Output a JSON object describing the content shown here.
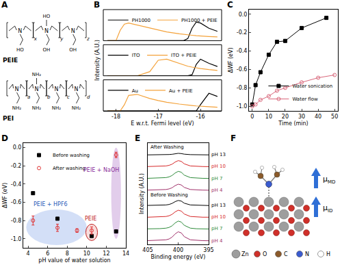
{
  "chart_data": [
    {
      "label": "B",
      "type": "line",
      "x_label": "E w.r.t. Fermi level (eV)",
      "y_label": "Intensity (A.U.)",
      "xlim": [
        -18.3,
        -15.5
      ],
      "xticks": [
        -18,
        -17,
        -16
      ],
      "ylim": [
        0,
        1.5
      ],
      "yticks": [],
      "tick_labels": "x",
      "legend": "top left",
      "x": [
        -18.2,
        -18.0,
        -17.9,
        -17.8,
        -17.7,
        -17.5,
        -17.2,
        -17.0,
        -16.8,
        -16.5,
        -16.4,
        -16.3,
        -16.2,
        -16.1,
        -16.0,
        -15.8,
        -15.6
      ],
      "subplots": [
        {
          "series": [
            {
              "name": "PH1000",
              "color": "#000000",
              "values": [
                0,
                0,
                0,
                0,
                0,
                0,
                0,
                0,
                0,
                0,
                0,
                0.1,
                0.6,
                0.9,
                0.85,
                0.6,
                0.45
              ]
            },
            {
              "name": "PH1000 + PEIE",
              "color": "#f4a23a",
              "values": [
                0,
                0,
                0.5,
                0.8,
                0.85,
                0.75,
                0.6,
                0.5,
                0.42,
                0.33,
                0.3,
                0.28,
                0.26,
                0.24,
                0.22,
                0.2,
                0.18
              ]
            }
          ]
        },
        {
          "series": [
            {
              "name": "ITO",
              "color": "#000000",
              "values": [
                0,
                0,
                0,
                0,
                0,
                0,
                0,
                0,
                0,
                0,
                0,
                0,
                0.05,
                0.55,
                0.8,
                0.6,
                0.45
              ]
            },
            {
              "name": "ITO + PEIE",
              "color": "#f4a23a",
              "values": [
                0,
                0,
                0,
                0,
                0,
                0,
                0.2,
                0.75,
                0.8,
                0.6,
                0.52,
                0.46,
                0.42,
                0.38,
                0.35,
                0.3,
                0.26
              ]
            }
          ]
        },
        {
          "series": [
            {
              "name": "Au",
              "color": "#000000",
              "values": [
                0,
                0,
                0,
                0,
                0,
                0,
                0,
                0,
                0,
                0,
                0,
                0,
                0,
                0,
                0.3,
                0.85,
                0.7
              ]
            },
            {
              "name": "Au + PEIE",
              "color": "#f4a23a",
              "values": [
                0,
                0,
                0,
                0.3,
                0.75,
                0.8,
                0.6,
                0.5,
                0.42,
                0.33,
                0.3,
                0.28,
                0.26,
                0.24,
                0.22,
                0.2,
                0.18
              ]
            }
          ]
        }
      ]
    },
    {
      "label": "C",
      "type": "line",
      "x_label": "Time (min)",
      "y_label": "ΔWF (eV)",
      "xlim": [
        -2,
        52
      ],
      "xticks": [
        0,
        10,
        20,
        30,
        40,
        50
      ],
      "ylim": [
        -1.05,
        0.05
      ],
      "yticks": [
        {
          "value": -1,
          "label": "-1.0"
        },
        -0.8,
        -0.6,
        -0.4,
        -0.2,
        {
          "value": 0,
          "label": "0.0"
        }
      ],
      "legend": "bottom right",
      "series": [
        {
          "name": "Water sonication",
          "color": "#000000",
          "marker": "square",
          "line_style": "solid",
          "x": [
            0,
            2,
            5,
            10,
            15,
            20,
            30,
            45
          ],
          "values": [
            -0.98,
            -0.77,
            -0.63,
            -0.44,
            -0.3,
            -0.29,
            -0.15,
            -0.04
          ]
        },
        {
          "name": "Water flow",
          "color": "#d9667a",
          "marker": "circle-open",
          "line_style": "solid",
          "x": [
            0,
            2,
            5,
            10,
            15,
            20,
            30,
            40,
            50
          ],
          "values": [
            -1.0,
            -0.98,
            -0.93,
            -0.89,
            -0.83,
            -0.8,
            -0.74,
            -0.69,
            -0.66
          ]
        }
      ]
    },
    {
      "label": "D",
      "type": "scatter",
      "x_label": "pH value of water solution",
      "y_label": "ΔWF (eV)",
      "xlim": [
        3.5,
        14
      ],
      "xticks": [
        4,
        6,
        8,
        10,
        12,
        14
      ],
      "ylim": [
        -1.1,
        0.05
      ],
      "yticks": [
        {
          "value": -1,
          "label": "-1.0"
        },
        -0.8,
        -0.6,
        -0.4,
        -0.2,
        {
          "value": 0,
          "label": "0.0"
        }
      ],
      "legend": "top left",
      "series": [
        {
          "name": "Before washing",
          "color": "#000000",
          "marker": "square",
          "x": [
            4.5,
            7,
            10.5,
            13
          ],
          "values": [
            -0.5,
            -0.78,
            -0.97,
            -0.92
          ]
        },
        {
          "name": "After washing",
          "color": "#e03030",
          "marker": "circle-open",
          "x": [
            4.5,
            7,
            9,
            10.5,
            13
          ],
          "values": [
            -0.8,
            -0.88,
            -0.91,
            -0.91,
            -0.08
          ],
          "error": [
            0.05,
            0.04,
            0.02,
            0.04,
            0.03
          ]
        }
      ],
      "annotations": [
        {
          "text": "PEIE + HPF6",
          "color": "#2a5ab8"
        },
        {
          "text": "PEIE",
          "color": "#c02020"
        },
        {
          "text": "PEIE + NaOH",
          "color": "#8a2d9a"
        }
      ]
    },
    {
      "label": "E",
      "type": "line",
      "x_label": "Binding energy (eV)",
      "y_label": "Intensity (A.U.)",
      "xlim": [
        405,
        395
      ],
      "xticks": [
        405,
        400,
        395
      ],
      "ylim": [
        0,
        8.6
      ],
      "yticks": [],
      "tick_labels": "x",
      "x": [
        405,
        404,
        403,
        402,
        401.5,
        401,
        400.5,
        400,
        399.5,
        399,
        398,
        397,
        396,
        395
      ],
      "series": [
        {
          "name": "pH 4",
          "color": "#a0306a",
          "values": [
            0.32,
            0.33,
            0.35,
            0.39,
            0.46,
            0.62,
            0.89,
            1.07,
            0.98,
            0.66,
            0.39,
            0.34,
            0.32,
            0.31
          ]
        },
        {
          "name": "pH 7",
          "color": "#2e8b3a",
          "values": [
            1.32,
            1.32,
            1.34,
            1.38,
            1.44,
            1.58,
            1.82,
            1.98,
            1.9,
            1.62,
            1.38,
            1.33,
            1.32,
            1.31
          ]
        },
        {
          "name": "pH 10",
          "color": "#d62728",
          "values": [
            2.31,
            2.32,
            2.34,
            2.37,
            2.43,
            2.55,
            2.76,
            2.9,
            2.83,
            2.58,
            2.37,
            2.33,
            2.31,
            2.31
          ]
        },
        {
          "name": "pH 13",
          "color": "#000000",
          "values": [
            3.31,
            3.32,
            3.33,
            3.35,
            3.39,
            3.48,
            3.63,
            3.73,
            3.68,
            3.5,
            3.35,
            3.32,
            3.31,
            3.3
          ]
        },
        {
          "name": "pH 4",
          "color": "#a0306a",
          "values": [
            4.61,
            4.62,
            4.63,
            4.66,
            4.71,
            4.81,
            4.99,
            5.11,
            5.05,
            4.84,
            4.66,
            4.62,
            4.61,
            4.6
          ]
        },
        {
          "name": "pH 7",
          "color": "#2e8b3a",
          "values": [
            5.61,
            5.62,
            5.64,
            5.67,
            5.73,
            5.85,
            6.06,
            6.2,
            6.13,
            5.88,
            5.67,
            5.63,
            5.61,
            5.6
          ]
        },
        {
          "name": "pH 10",
          "color": "#d62728",
          "values": [
            6.61,
            6.62,
            6.63,
            6.66,
            6.71,
            6.81,
            6.99,
            7.11,
            7.05,
            6.84,
            6.66,
            6.62,
            6.61,
            6.6
          ]
        },
        {
          "name": "pH 13",
          "color": "#000000",
          "values": [
            7.6,
            7.6,
            7.61,
            7.62,
            7.63,
            7.65,
            7.7,
            7.73,
            7.71,
            7.66,
            7.62,
            7.61,
            7.6,
            7.6
          ]
        }
      ],
      "annotations": [
        "After Washing",
        "Before Washing"
      ]
    }
  ],
  "diagrams": {
    "A": {
      "label": "A",
      "molecules": [
        {
          "name": "PEIE",
          "atom": "N",
          "units": [
            {
              "subscript": "x",
              "groups": [
                "HO"
              ]
            },
            {
              "subscript": "y",
              "groups": [
                "OH",
                "HO"
              ]
            },
            {
              "subscript": "z",
              "groups": [
                "OH"
              ]
            }
          ]
        },
        {
          "name": "PEI",
          "atom": "N",
          "units": [
            {
              "subscript": "a",
              "groups": [
                "NH₂"
              ]
            },
            {
              "subscript": "b",
              "groups": [
                "NH₂",
                "NH₂"
              ]
            },
            {
              "subscript": "c",
              "groups": [
                "NH₂"
              ]
            },
            {
              "subscript": "d",
              "groups": [
                "NH₂"
              ]
            }
          ]
        }
      ]
    },
    "F": {
      "label": "F",
      "elements": [
        {
          "name": "Zn",
          "color": "#9e9e9e"
        },
        {
          "name": "O",
          "color": "#d0302a"
        },
        {
          "name": "C",
          "color": "#8b5a2b"
        },
        {
          "name": "N",
          "color": "#3a5bd0"
        },
        {
          "name": "H",
          "color": "#ffffff"
        }
      ],
      "arrows": [
        {
          "symbol": "μ",
          "sub": "MD"
        },
        {
          "symbol": "μ",
          "sub": "ID"
        }
      ]
    }
  }
}
